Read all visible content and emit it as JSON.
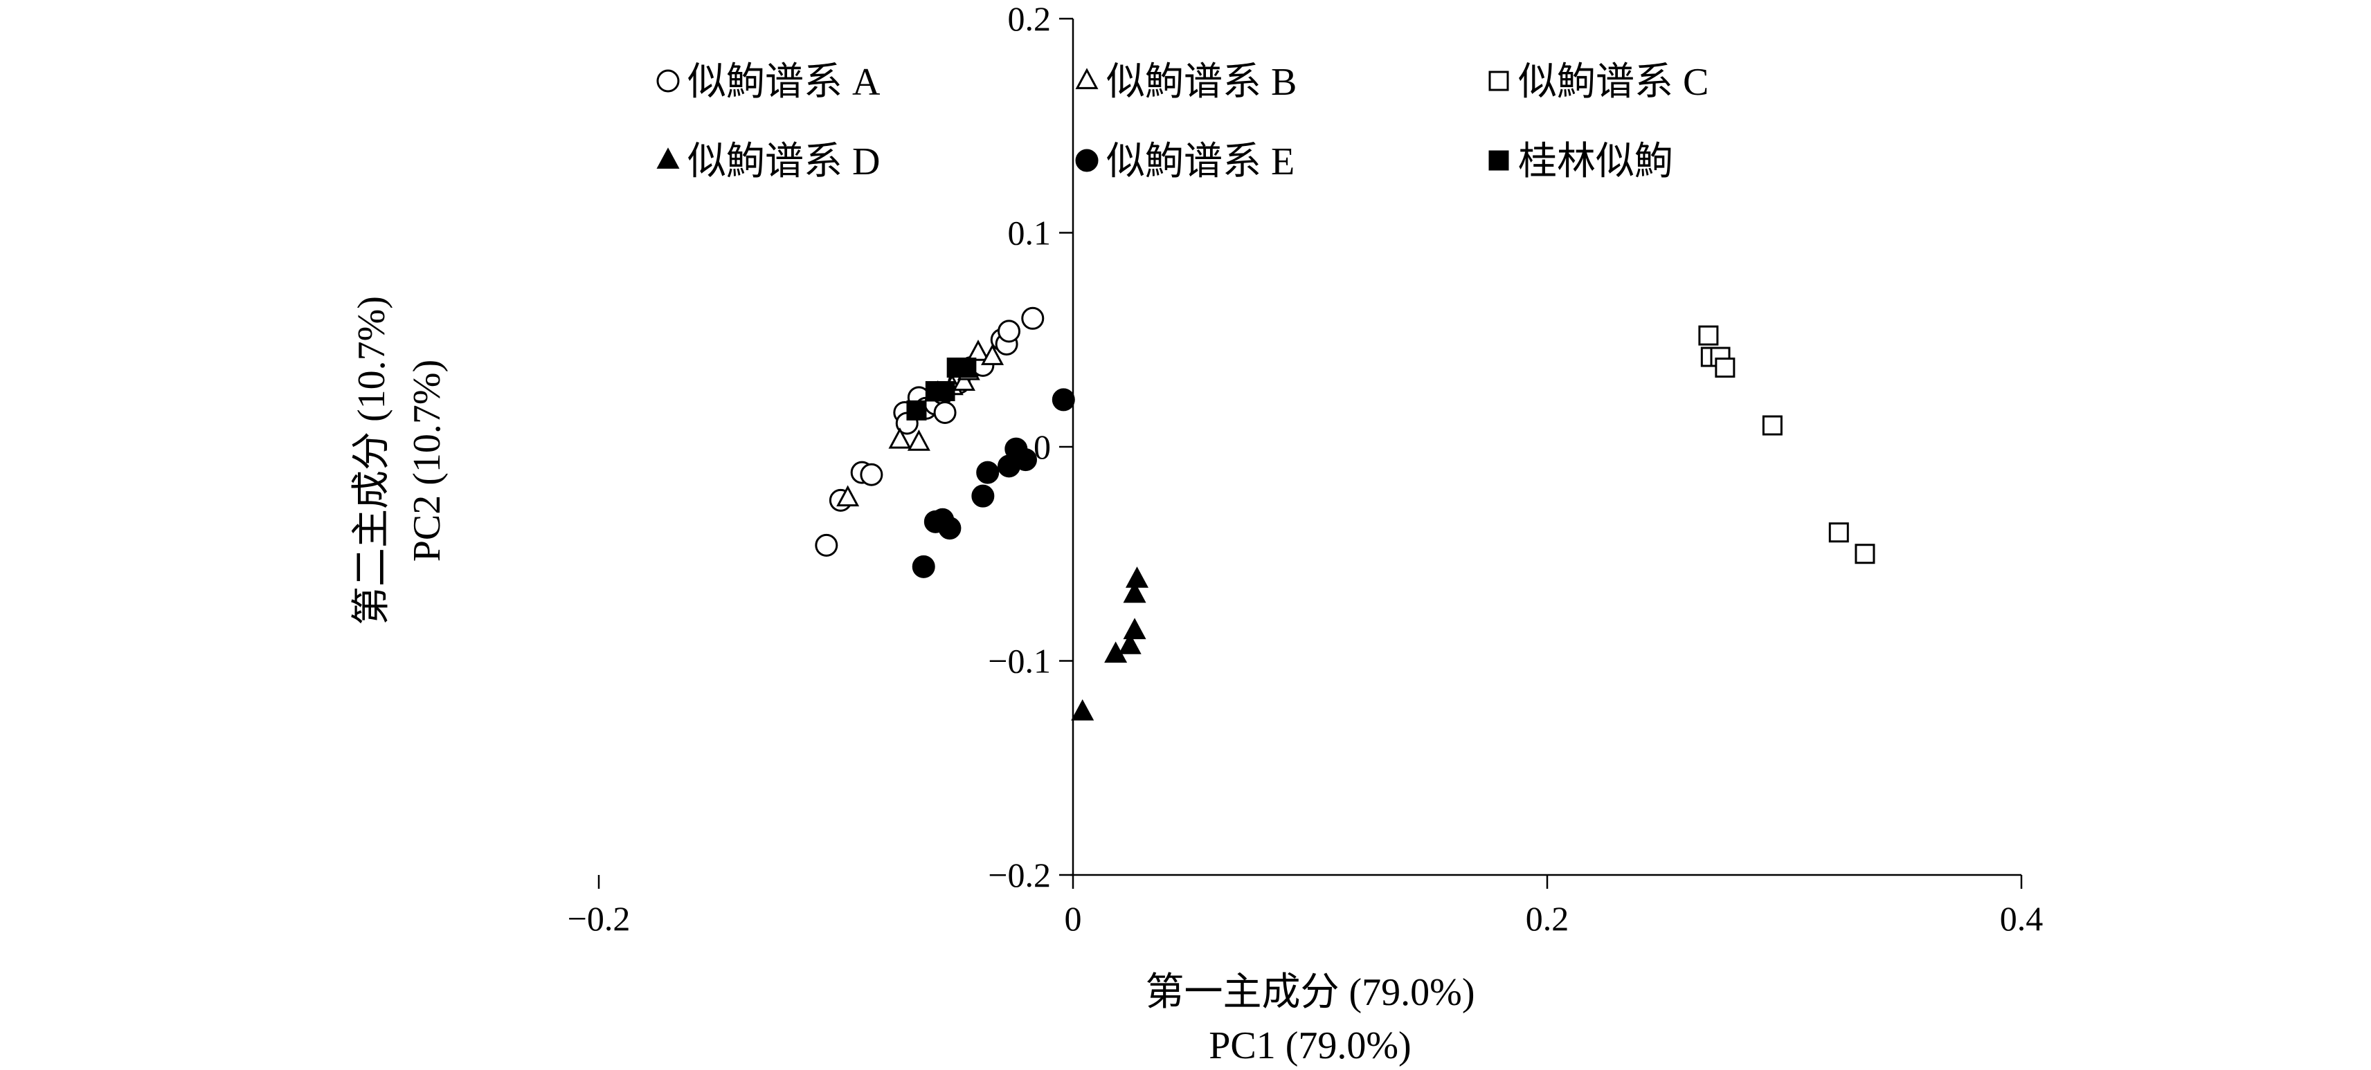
{
  "chart_data": {
    "type": "scatter",
    "xlabel": [
      "第一主成分 (79.0%)",
      "PC1 (79.0%)"
    ],
    "ylabel": [
      "第二主成分 (10.7%)",
      "PC2 (10.7%)"
    ],
    "xlim": [
      -0.2,
      0.4
    ],
    "ylim": [
      -0.2,
      0.2
    ],
    "xticks": [
      -0.2,
      0,
      0.2,
      0.4
    ],
    "yticks": [
      0.2,
      0.1,
      0,
      -0.1,
      -0.2
    ],
    "xtick_labels": [
      "−0.2",
      "0",
      "0.2",
      "0.4"
    ],
    "ytick_labels": [
      "0.2",
      "0.1",
      "0",
      "−0.1",
      "−0.2"
    ],
    "grid": false,
    "legend_position": "top-left, inside plot, 3 columns",
    "series": [
      {
        "name": "似鮈谱系 A",
        "marker": "circle-open",
        "points": [
          [
            -0.104,
            -0.046
          ],
          [
            -0.098,
            -0.025
          ],
          [
            -0.089,
            -0.012
          ],
          [
            -0.085,
            -0.013
          ],
          [
            -0.071,
            0.016
          ],
          [
            -0.07,
            0.011
          ],
          [
            -0.065,
            0.023
          ],
          [
            -0.062,
            0.018
          ],
          [
            -0.058,
            0.02
          ],
          [
            -0.055,
            0.025
          ],
          [
            -0.054,
            0.016
          ],
          [
            -0.048,
            0.03
          ],
          [
            -0.043,
            0.037
          ],
          [
            -0.038,
            0.038
          ],
          [
            -0.03,
            0.05
          ],
          [
            -0.028,
            0.048
          ],
          [
            -0.027,
            0.054
          ],
          [
            -0.017,
            0.06
          ]
        ]
      },
      {
        "name": "似鮈谱系 B",
        "marker": "triangle-open",
        "points": [
          [
            -0.095,
            -0.024
          ],
          [
            -0.073,
            0.003
          ],
          [
            -0.065,
            0.002
          ],
          [
            -0.057,
            0.025
          ],
          [
            -0.051,
            0.028
          ],
          [
            -0.046,
            0.03
          ],
          [
            -0.044,
            0.035
          ],
          [
            -0.04,
            0.044
          ],
          [
            -0.034,
            0.042
          ]
        ]
      },
      {
        "name": "似鮈谱系 C",
        "marker": "square-open",
        "points": [
          [
            0.268,
            0.052
          ],
          [
            0.269,
            0.042
          ],
          [
            0.273,
            0.042
          ],
          [
            0.275,
            0.037
          ],
          [
            0.295,
            0.01
          ],
          [
            0.323,
            -0.04
          ],
          [
            0.334,
            -0.05
          ]
        ]
      },
      {
        "name": "似鮈谱系 D",
        "marker": "triangle-filled",
        "points": [
          [
            0.004,
            -0.124
          ],
          [
            0.018,
            -0.097
          ],
          [
            0.024,
            -0.093
          ],
          [
            0.026,
            -0.086
          ],
          [
            0.026,
            -0.069
          ],
          [
            0.027,
            -0.062
          ]
        ]
      },
      {
        "name": "似鮈谱系 E",
        "marker": "circle-filled",
        "points": [
          [
            -0.063,
            -0.056
          ],
          [
            -0.058,
            -0.035
          ],
          [
            -0.055,
            -0.034
          ],
          [
            -0.052,
            -0.038
          ],
          [
            -0.038,
            -0.023
          ],
          [
            -0.036,
            -0.012
          ],
          [
            -0.027,
            -0.009
          ],
          [
            -0.024,
            -0.001
          ],
          [
            -0.02,
            -0.006
          ],
          [
            -0.004,
            0.022
          ]
        ]
      },
      {
        "name": "桂林似鮈",
        "marker": "square-filled",
        "points": [
          [
            -0.066,
            0.017
          ],
          [
            -0.058,
            0.026
          ],
          [
            -0.054,
            0.026
          ],
          [
            -0.049,
            0.037
          ],
          [
            -0.045,
            0.037
          ]
        ]
      }
    ]
  }
}
